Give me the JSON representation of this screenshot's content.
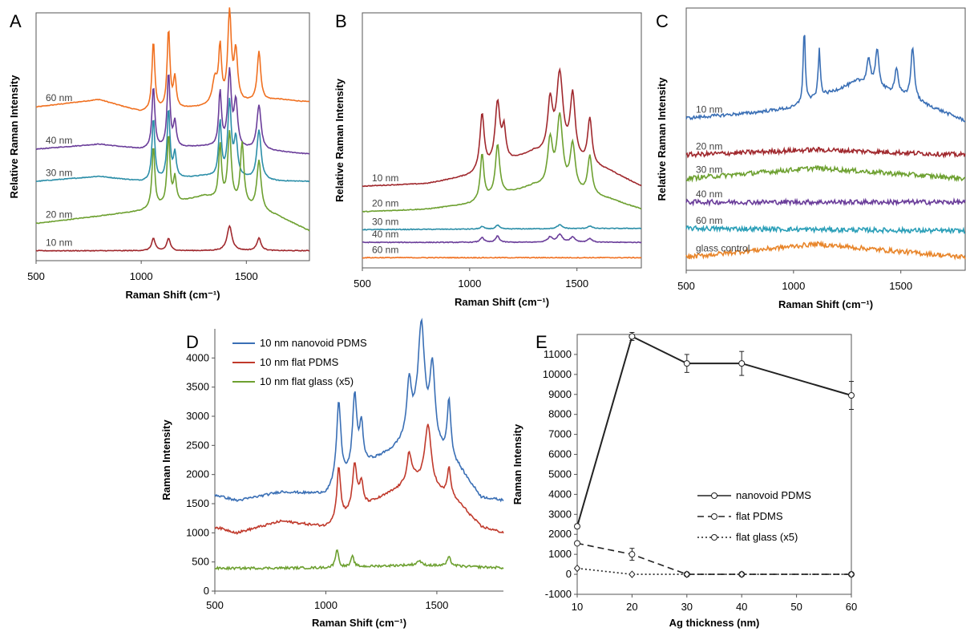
{
  "chart_data": [
    {
      "panel": "A",
      "type": "line",
      "xlabel": "Raman Shift (cm⁻¹)",
      "ylabel": "Relative Raman Intensity",
      "xlim": [
        500,
        1800
      ],
      "xticks": [
        "500",
        "1000",
        "1500"
      ],
      "y_axis_numbers": false,
      "series": [
        {
          "name": "60 nm",
          "color": "#f07020",
          "offset": 0.62,
          "amp": 0.42,
          "baseline": [
            [
              500,
              0.62
            ],
            [
              800,
              0.65
            ],
            [
              1000,
              0.6
            ],
            [
              1300,
              0.62
            ],
            [
              1650,
              0.65
            ],
            [
              1800,
              0.64
            ]
          ],
          "peaks": [
            [
              1058,
              0.28,
              8
            ],
            [
              1130,
              0.32,
              8
            ],
            [
              1160,
              0.12,
              8
            ],
            [
              1350,
              0.1,
              14
            ],
            [
              1375,
              0.22,
              8
            ],
            [
              1420,
              0.36,
              10
            ],
            [
              1450,
              0.2,
              10
            ],
            [
              1560,
              0.2,
              10
            ]
          ]
        },
        {
          "name": "40 nm",
          "color": "#6a3d9a",
          "offset": 0.42,
          "amp": 0.4,
          "baseline": [
            [
              500,
              0.45
            ],
            [
              800,
              0.47
            ],
            [
              1000,
              0.45
            ],
            [
              1300,
              0.46
            ],
            [
              1650,
              0.44
            ],
            [
              1800,
              0.43
            ]
          ],
          "peaks": [
            [
              1058,
              0.25,
              8
            ],
            [
              1130,
              0.3,
              8
            ],
            [
              1160,
              0.1,
              8
            ],
            [
              1375,
              0.22,
              8
            ],
            [
              1420,
              0.3,
              10
            ],
            [
              1450,
              0.18,
              10
            ],
            [
              1560,
              0.18,
              12
            ]
          ]
        },
        {
          "name": "30 nm",
          "color": "#2b8ea8",
          "offset": 0.3,
          "amp": 0.4,
          "baseline": [
            [
              500,
              0.32
            ],
            [
              800,
              0.34
            ],
            [
              1000,
              0.32
            ],
            [
              1300,
              0.34
            ],
            [
              1650,
              0.32
            ],
            [
              1800,
              0.32
            ]
          ],
          "peaks": [
            [
              1058,
              0.25,
              8
            ],
            [
              1130,
              0.28,
              8
            ],
            [
              1160,
              0.1,
              8
            ],
            [
              1375,
              0.22,
              8
            ],
            [
              1420,
              0.3,
              10
            ],
            [
              1450,
              0.15,
              10
            ],
            [
              1560,
              0.2,
              12
            ]
          ]
        },
        {
          "name": "20 nm",
          "color": "#6da030",
          "offset": 0.12,
          "amp": 0.4,
          "baseline": [
            [
              500,
              0.15
            ],
            [
              800,
              0.18
            ],
            [
              1000,
              0.2
            ],
            [
              1300,
              0.26
            ],
            [
              1650,
              0.18
            ],
            [
              1800,
              0.12
            ]
          ],
          "peaks": [
            [
              1058,
              0.25,
              8
            ],
            [
              1130,
              0.28,
              8
            ],
            [
              1160,
              0.1,
              8
            ],
            [
              1375,
              0.22,
              8
            ],
            [
              1420,
              0.28,
              10
            ],
            [
              1480,
              0.25,
              10
            ],
            [
              1560,
              0.2,
              12
            ]
          ]
        },
        {
          "name": "10 nm",
          "color": "#a0282d",
          "offset": 0.02,
          "amp": 0.1,
          "baseline": [
            [
              500,
              0.04
            ],
            [
              1800,
              0.04
            ]
          ],
          "peaks": [
            [
              1058,
              0.05,
              10
            ],
            [
              1130,
              0.05,
              10
            ],
            [
              1420,
              0.1,
              14
            ],
            [
              1560,
              0.05,
              12
            ]
          ]
        }
      ]
    },
    {
      "panel": "B",
      "type": "line",
      "xlabel": "Raman Shift (cm⁻¹)",
      "ylabel": "Relative Raman Intensity",
      "xlim": [
        500,
        1800
      ],
      "xticks": [
        "500",
        "1000",
        "1500"
      ],
      "y_axis_numbers": false,
      "series": [
        {
          "name": "10 nm",
          "color": "#a0282d",
          "offset": 0.32,
          "amp": 0.5,
          "baseline": [
            [
              500,
              0.32
            ],
            [
              800,
              0.33
            ],
            [
              1000,
              0.36
            ],
            [
              1300,
              0.45
            ],
            [
              1650,
              0.38
            ],
            [
              1800,
              0.32
            ]
          ],
          "peaks": [
            [
              1058,
              0.22,
              12
            ],
            [
              1130,
              0.24,
              14
            ],
            [
              1160,
              0.12,
              10
            ],
            [
              1375,
              0.2,
              14
            ],
            [
              1420,
              0.32,
              18
            ],
            [
              1480,
              0.25,
              14
            ],
            [
              1560,
              0.18,
              12
            ]
          ]
        },
        {
          "name": "20 nm",
          "color": "#6da030",
          "offset": 0.22,
          "amp": 0.45,
          "baseline": [
            [
              500,
              0.22
            ],
            [
              800,
              0.23
            ],
            [
              1000,
              0.25
            ],
            [
              1300,
              0.32
            ],
            [
              1650,
              0.27
            ],
            [
              1800,
              0.23
            ]
          ],
          "peaks": [
            [
              1058,
              0.18,
              10
            ],
            [
              1130,
              0.2,
              12
            ],
            [
              1375,
              0.18,
              14
            ],
            [
              1420,
              0.28,
              16
            ],
            [
              1480,
              0.18,
              14
            ],
            [
              1560,
              0.15,
              12
            ]
          ]
        },
        {
          "name": "30 nm",
          "color": "#2b8ea8",
          "offset": 0.15,
          "amp": 0.02,
          "baseline": [
            [
              500,
              0.15
            ],
            [
              1800,
              0.155
            ]
          ],
          "peaks": [
            [
              1058,
              0.01,
              10
            ],
            [
              1130,
              0.015,
              10
            ],
            [
              1420,
              0.015,
              14
            ],
            [
              1560,
              0.01,
              12
            ]
          ]
        },
        {
          "name": "40 nm",
          "color": "#6a3d9a",
          "offset": 0.1,
          "amp": 0.03,
          "baseline": [
            [
              500,
              0.1
            ],
            [
              1800,
              0.1
            ]
          ],
          "peaks": [
            [
              1058,
              0.02,
              10
            ],
            [
              1130,
              0.025,
              10
            ],
            [
              1375,
              0.02,
              14
            ],
            [
              1420,
              0.03,
              14
            ],
            [
              1480,
              0.02,
              14
            ],
            [
              1560,
              0.015,
              12
            ]
          ]
        },
        {
          "name": "60 nm",
          "color": "#f07020",
          "offset": 0.04,
          "amp": 0.0,
          "baseline": [
            [
              500,
              0.04
            ],
            [
              1800,
              0.04
            ]
          ],
          "peaks": []
        }
      ]
    },
    {
      "panel": "C",
      "type": "line",
      "xlabel": "Raman Shift (cm⁻¹)",
      "ylabel": "Relative Raman Intensity",
      "xlim": [
        500,
        1800
      ],
      "xticks": [
        "500",
        "1000",
        "1500"
      ],
      "y_axis_numbers": false,
      "series": [
        {
          "name": "10 nm",
          "color": "#3a6fb5",
          "offset": 0.55,
          "amp": 0.4,
          "baseline": [
            [
              500,
              0.58
            ],
            [
              800,
              0.6
            ],
            [
              1000,
              0.62
            ],
            [
              1300,
              0.72
            ],
            [
              1650,
              0.62
            ],
            [
              1800,
              0.57
            ]
          ],
          "peaks": [
            [
              1050,
              0.28,
              6
            ],
            [
              1120,
              0.18,
              6
            ],
            [
              1350,
              0.1,
              10
            ],
            [
              1390,
              0.14,
              10
            ],
            [
              1480,
              0.1,
              10
            ],
            [
              1555,
              0.2,
              10
            ]
          ]
        },
        {
          "name": "20 nm",
          "color": "#a0282d",
          "offset": 0.43,
          "amp": 0.0,
          "baseline": [
            [
              500,
              0.44
            ],
            [
              1100,
              0.46
            ],
            [
              1800,
              0.44
            ]
          ],
          "peaks": []
        },
        {
          "name": "30 nm",
          "color": "#6da030",
          "offset": 0.35,
          "amp": 0.0,
          "baseline": [
            [
              500,
              0.35
            ],
            [
              1100,
              0.39
            ],
            [
              1800,
              0.35
            ]
          ],
          "peaks": []
        },
        {
          "name": "40 nm",
          "color": "#6a3d9a",
          "offset": 0.26,
          "amp": 0.0,
          "baseline": [
            [
              500,
              0.26
            ],
            [
              1800,
              0.26
            ]
          ],
          "peaks": []
        },
        {
          "name": "60 nm",
          "color": "#2b9fb8",
          "offset": 0.15,
          "amp": 0.0,
          "baseline": [
            [
              500,
              0.16
            ],
            [
              1800,
              0.15
            ]
          ],
          "peaks": []
        },
        {
          "name": "glass control",
          "color": "#e8852a",
          "offset": 0.05,
          "amp": 0.0,
          "baseline": [
            [
              500,
              0.05
            ],
            [
              1100,
              0.1
            ],
            [
              1800,
              0.05
            ]
          ],
          "peaks": []
        }
      ]
    },
    {
      "panel": "D",
      "type": "line",
      "xlabel": "Raman Shift (cm⁻¹)",
      "ylabel": "Raman Intensity",
      "xlim": [
        500,
        1800
      ],
      "ylim": [
        0,
        4500
      ],
      "xticks": [
        "500",
        "1000",
        "1500"
      ],
      "yticks": [
        "0",
        "500",
        "1000",
        "1500",
        "2000",
        "2500",
        "3000",
        "3500",
        "4000"
      ],
      "legend": "top-left",
      "series": [
        {
          "name": "10 nm nanovoid PDMS",
          "color": "#3a6fb5",
          "baseline": [
            [
              500,
              1650
            ],
            [
              600,
              1550
            ],
            [
              800,
              1700
            ],
            [
              1000,
              1650
            ],
            [
              1200,
              2200
            ],
            [
              1300,
              2400
            ],
            [
              1400,
              2700
            ],
            [
              1600,
              2100
            ],
            [
              1700,
              1600
            ],
            [
              1800,
              1550
            ]
          ],
          "peaks": [
            [
              1058,
              1400,
              12
            ],
            [
              1130,
              1300,
              12
            ],
            [
              1160,
              700,
              10
            ],
            [
              1375,
              900,
              12
            ],
            [
              1430,
              1900,
              18
            ],
            [
              1480,
              1300,
              14
            ],
            [
              1555,
              1000,
              10
            ]
          ]
        },
        {
          "name": "10 nm flat PDMS",
          "color": "#c0392b",
          "baseline": [
            [
              500,
              1100
            ],
            [
              600,
              1000
            ],
            [
              800,
              1200
            ],
            [
              1000,
              1100
            ],
            [
              1200,
              1500
            ],
            [
              1300,
              1700
            ],
            [
              1400,
              1900
            ],
            [
              1600,
              1500
            ],
            [
              1700,
              1100
            ],
            [
              1800,
              1000
            ]
          ],
          "peaks": [
            [
              1058,
              900,
              10
            ],
            [
              1130,
              800,
              12
            ],
            [
              1160,
              400,
              10
            ],
            [
              1375,
              500,
              12
            ],
            [
              1460,
              1050,
              18
            ],
            [
              1555,
              500,
              10
            ]
          ]
        },
        {
          "name": "10 nm flat glass (x5)",
          "color": "#6da030",
          "baseline": [
            [
              500,
              390
            ],
            [
              1000,
              400
            ],
            [
              1400,
              450
            ],
            [
              1800,
              400
            ]
          ],
          "peaks": [
            [
              1050,
              320,
              8
            ],
            [
              1120,
              180,
              8
            ],
            [
              1420,
              80,
              10
            ],
            [
              1555,
              150,
              10
            ]
          ]
        }
      ]
    },
    {
      "panel": "E",
      "type": "line",
      "xlabel": "Ag thickness  (nm)",
      "ylabel": "Raman Intensity",
      "xlim": [
        10,
        60
      ],
      "ylim": [
        -1000,
        12000
      ],
      "xticks": [
        "10",
        "20",
        "30",
        "40",
        "50",
        "60"
      ],
      "yticks": [
        "-1000",
        "0",
        "1000",
        "2000",
        "3000",
        "4000",
        "5000",
        "6000",
        "7000",
        "8000",
        "9000",
        "10000",
        "11000"
      ],
      "legend": "lower-right",
      "series": [
        {
          "name": "nanovoid PDMS",
          "style": "solid",
          "marker": "circle",
          "x": [
            10,
            20,
            30,
            40,
            60
          ],
          "y": [
            2400,
            11900,
            10550,
            10550,
            8950
          ],
          "err": [
            100,
            200,
            450,
            600,
            700
          ]
        },
        {
          "name": "flat PDMS",
          "style": "dashed",
          "marker": "circle",
          "x": [
            10,
            20,
            30,
            40,
            60
          ],
          "y": [
            1550,
            1000,
            0,
            0,
            0
          ],
          "err": [
            50,
            300,
            50,
            50,
            50
          ]
        },
        {
          "name": "flat glass (x5)",
          "style": "dotted",
          "marker": "diamond",
          "x": [
            10,
            20,
            30,
            40,
            60
          ],
          "y": [
            300,
            0,
            0,
            0,
            0
          ],
          "err": [
            50,
            50,
            50,
            50,
            50
          ]
        }
      ]
    }
  ]
}
